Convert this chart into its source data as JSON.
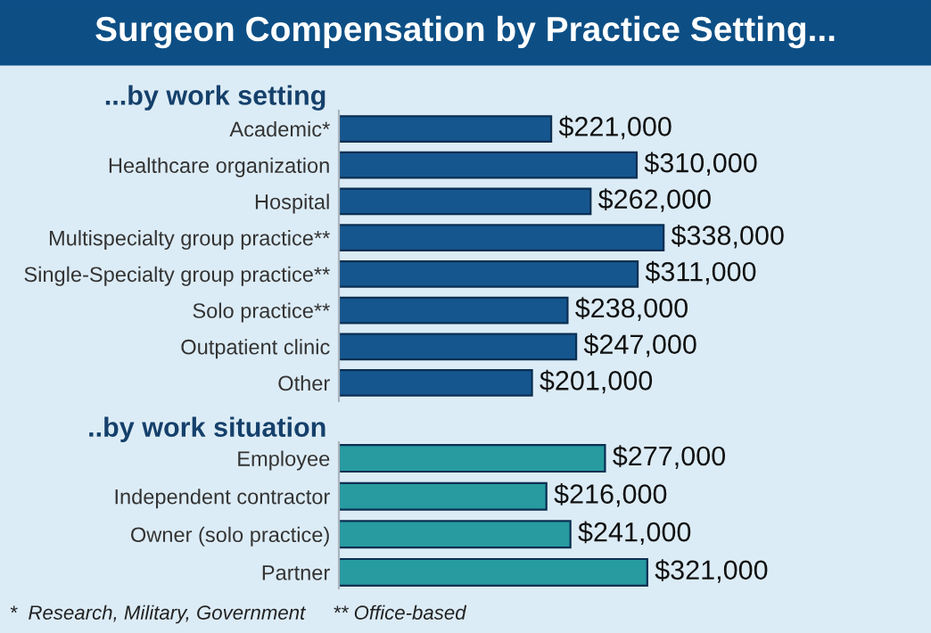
{
  "chart_data": [
    {
      "type": "bar",
      "orientation": "horizontal",
      "title": "Surgeon Compensation by Practice Setting...",
      "subtitle": "...by work setting",
      "categories": [
        "Academic*",
        "Healthcare organization",
        "Hospital",
        "Multispecialty group practice**",
        "Single-Specialty group practice**",
        "Solo practice**",
        "Outpatient clinic",
        "Other"
      ],
      "values": [
        221000,
        310000,
        262000,
        338000,
        311000,
        238000,
        247000,
        201000
      ],
      "value_labels": [
        "$221,000",
        "$310,000",
        "$262,000",
        "$338,000",
        "$311,000",
        "$238,000",
        "$247,000",
        "$201,000"
      ],
      "color": "#15568f",
      "grid": false,
      "tick_labels": "y"
    },
    {
      "type": "bar",
      "orientation": "horizontal",
      "subtitle": "..by work situation",
      "categories": [
        "Employee",
        "Independent contractor",
        "Owner (solo practice)",
        "Partner"
      ],
      "values": [
        277000,
        216000,
        241000,
        321000
      ],
      "value_labels": [
        "$277,000",
        "$216,000",
        "$241,000",
        "$321,000"
      ],
      "color": "#279ba0",
      "grid": false,
      "tick_labels": "y",
      "annotations": [
        "*  Research, Military, Government     ** Office-based"
      ]
    }
  ]
}
